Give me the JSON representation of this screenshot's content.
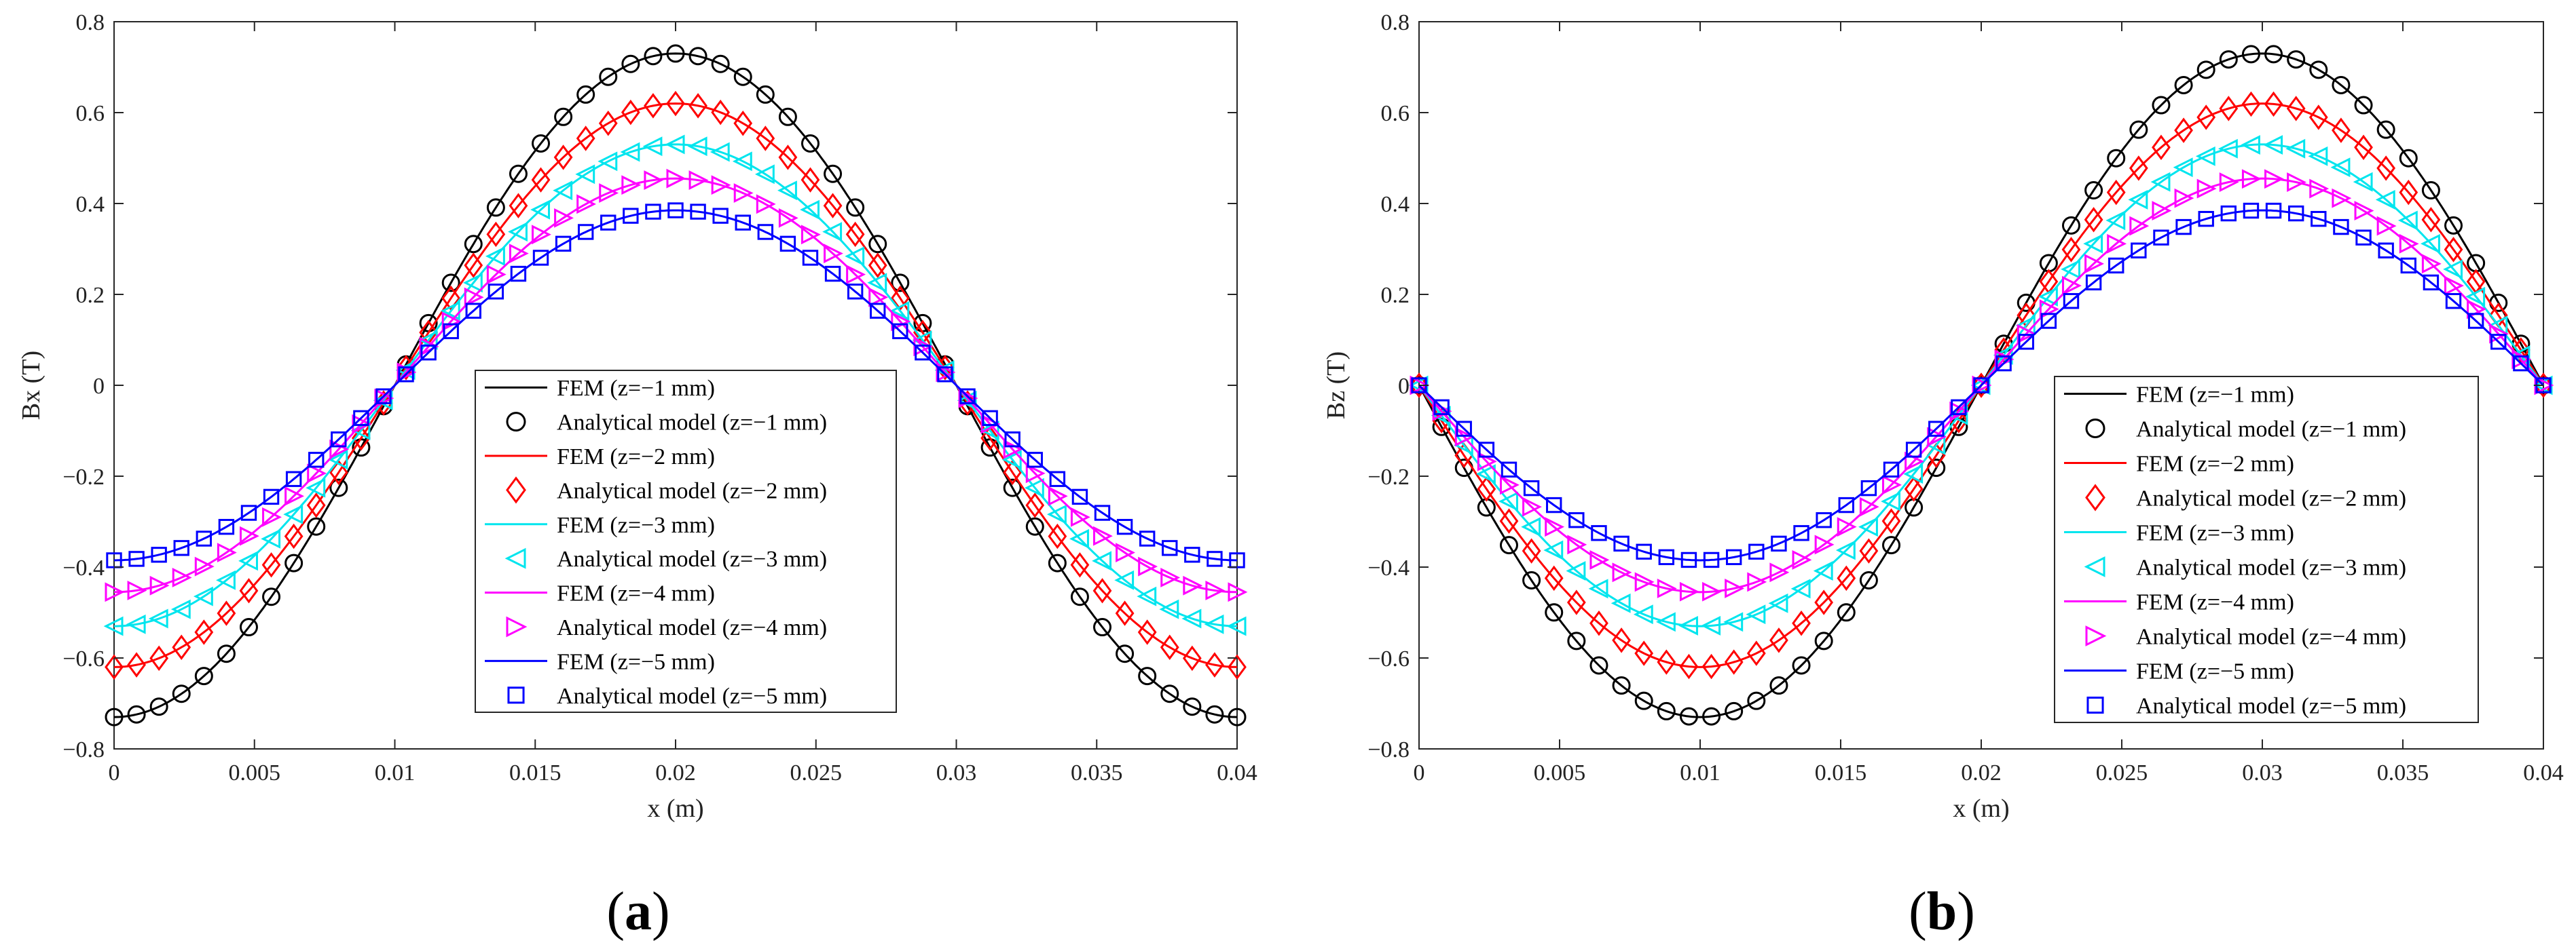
{
  "chart_data": [
    {
      "type": "line",
      "panel": "a",
      "caption_open": "(",
      "caption_letter": "a",
      "caption_close": ")",
      "xlabel": "x (m)",
      "ylabel": "Bx (T)",
      "xlim": [
        0,
        0.04
      ],
      "ylim": [
        -0.8,
        0.8
      ],
      "xticks": [
        0,
        0.005,
        0.01,
        0.015,
        0.02,
        0.025,
        0.03,
        0.035,
        0.04
      ],
      "xtick_labels": [
        "0",
        "0.005",
        "0.01",
        "0.015",
        "0.02",
        "0.025",
        "0.03",
        "0.035",
        "0.04"
      ],
      "yticks": [
        -0.8,
        -0.6,
        -0.4,
        -0.2,
        0,
        0.2,
        0.4,
        0.6,
        0.8
      ],
      "ytick_labels": [
        "−0.8",
        "−0.6",
        "−0.4",
        "−0.2",
        "0",
        "0.2",
        "0.4",
        "0.6",
        "0.8"
      ],
      "function": "Bx = -A*cos(2*pi*x/0.04)",
      "marker_x_step": 0.0008,
      "legend_position": "center-right",
      "series": [
        {
          "z": -1,
          "amplitude": 0.73,
          "color": "#000000",
          "marker": "circle",
          "fem_label": "FEM (z=−1 mm)",
          "analytical_label": "Analytical model (z=−1 mm)"
        },
        {
          "z": -2,
          "amplitude": 0.62,
          "color": "#ff0000",
          "marker": "diamond",
          "fem_label": "FEM (z=−2 mm)",
          "analytical_label": "Analytical model (z=−2 mm)"
        },
        {
          "z": -3,
          "amplitude": 0.53,
          "color": "#00e5ee",
          "marker": "triangle-left",
          "fem_label": "FEM (z=−3 mm)",
          "analytical_label": "Analytical model (z=−3 mm)"
        },
        {
          "z": -4,
          "amplitude": 0.455,
          "color": "#ff00ff",
          "marker": "triangle-right",
          "fem_label": "FEM (z=−4 mm)",
          "analytical_label": "Analytical model (z=−4 mm)"
        },
        {
          "z": -5,
          "amplitude": 0.385,
          "color": "#0000ff",
          "marker": "square",
          "fem_label": "FEM (z=−5 mm)",
          "analytical_label": "Analytical model (z=−5 mm)"
        }
      ]
    },
    {
      "type": "line",
      "panel": "b",
      "caption_open": "(",
      "caption_letter": "b",
      "caption_close": ")",
      "xlabel": "x (m)",
      "ylabel": "Bz (T)",
      "xlim": [
        0,
        0.04
      ],
      "ylim": [
        -0.8,
        0.8
      ],
      "xticks": [
        0,
        0.005,
        0.01,
        0.015,
        0.02,
        0.025,
        0.03,
        0.035,
        0.04
      ],
      "xtick_labels": [
        "0",
        "0.005",
        "0.01",
        "0.015",
        "0.02",
        "0.025",
        "0.03",
        "0.035",
        "0.04"
      ],
      "yticks": [
        -0.8,
        -0.6,
        -0.4,
        -0.2,
        0,
        0.2,
        0.4,
        0.6,
        0.8
      ],
      "ytick_labels": [
        "−0.8",
        "−0.6",
        "−0.4",
        "−0.2",
        "0",
        "0.2",
        "0.4",
        "0.6",
        "0.8"
      ],
      "function": "Bz = -A*sin(2*pi*x/0.04)",
      "marker_x_step": 0.0008,
      "legend_position": "center-right",
      "series": [
        {
          "z": -1,
          "amplitude": 0.73,
          "color": "#000000",
          "marker": "circle",
          "fem_label": "FEM (z=−1 mm)",
          "analytical_label": "Analytical model (z=−1 mm)"
        },
        {
          "z": -2,
          "amplitude": 0.62,
          "color": "#ff0000",
          "marker": "diamond",
          "fem_label": "FEM (z=−2 mm)",
          "analytical_label": "Analytical model (z=−2 mm)"
        },
        {
          "z": -3,
          "amplitude": 0.53,
          "color": "#00e5ee",
          "marker": "triangle-left",
          "fem_label": "FEM (z=−3 mm)",
          "analytical_label": "Analytical model (z=−3 mm)"
        },
        {
          "z": -4,
          "amplitude": 0.455,
          "color": "#ff00ff",
          "marker": "triangle-right",
          "fem_label": "FEM (z=−4 mm)",
          "analytical_label": "Analytical model (z=−4 mm)"
        },
        {
          "z": -5,
          "amplitude": 0.385,
          "color": "#0000ff",
          "marker": "square",
          "fem_label": "FEM (z=−5 mm)",
          "analytical_label": "Analytical model (z=−5 mm)"
        }
      ]
    }
  ]
}
